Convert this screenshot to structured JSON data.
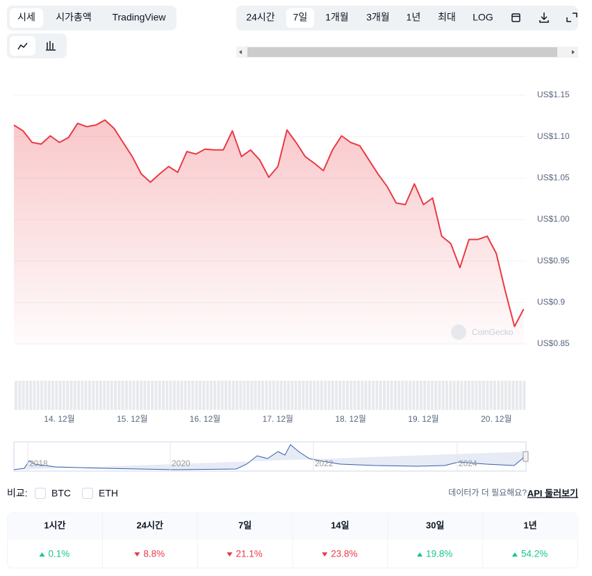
{
  "tabs": [
    "시세",
    "시가총액",
    "TradingView"
  ],
  "active_tab": 0,
  "ranges": [
    "24시간",
    "7일",
    "1개월",
    "3개월",
    "1년",
    "최대",
    "LOG"
  ],
  "active_range": 1,
  "chart_data": {
    "type": "line",
    "categories": [
      null,
      null,
      null,
      null,
      null,
      "14. 12월",
      null,
      null,
      null,
      null,
      null,
      null,
      null,
      "15. 12월",
      null,
      null,
      null,
      null,
      null,
      null,
      null,
      "16. 12월",
      null,
      null,
      null,
      null,
      null,
      null,
      null,
      "17. 12월",
      null,
      null,
      null,
      null,
      null,
      null,
      null,
      "18. 12월",
      null,
      null,
      null,
      null,
      null,
      null,
      null,
      "19. 12월",
      null,
      null,
      null,
      null,
      null,
      null,
      null,
      "20. 12월",
      null,
      null,
      null
    ],
    "values": [
      1.114,
      1.107,
      1.093,
      1.091,
      1.101,
      1.093,
      1.099,
      1.116,
      1.112,
      1.114,
      1.12,
      1.11,
      1.093,
      1.076,
      1.055,
      1.045,
      1.055,
      1.064,
      1.057,
      1.082,
      1.079,
      1.085,
      1.084,
      1.084,
      1.107,
      1.076,
      1.084,
      1.072,
      1.051,
      1.064,
      1.108,
      1.093,
      1.076,
      1.068,
      1.059,
      1.084,
      1.101,
      1.093,
      1.089,
      1.072,
      1.055,
      1.04,
      1.02,
      1.018,
      1.043,
      1.018,
      1.026,
      0.98,
      0.971,
      0.942,
      0.976,
      0.976,
      0.98,
      0.959,
      0.913,
      0.871,
      0.892
    ],
    "color": "#ea3943",
    "ylim": [
      0.85,
      1.15
    ],
    "yticks": [
      {
        "value": 0.85,
        "label": "US$0.85"
      },
      {
        "value": 0.9,
        "label": "US$0.9"
      },
      {
        "value": 0.95,
        "label": "US$0.95"
      },
      {
        "value": 1.0,
        "label": "US$1.00"
      },
      {
        "value": 1.05,
        "label": "US$1.05"
      },
      {
        "value": 1.1,
        "label": "US$1.10"
      },
      {
        "value": 1.15,
        "label": "US$1.15"
      }
    ],
    "grid": true,
    "watermark": "CoinGecko"
  },
  "navigator": {
    "labels": [
      "2018",
      "2020",
      "2022",
      "2024"
    ]
  },
  "compare": {
    "label": "비교:",
    "options": [
      "BTC",
      "ETH"
    ]
  },
  "api": {
    "prompt": "데이터가 더 필요해요?",
    "link": "API 둘러보기"
  },
  "changes": [
    {
      "period": "1시간",
      "value": "0.1%",
      "trend": "up"
    },
    {
      "period": "24시간",
      "value": "8.8%",
      "trend": "down"
    },
    {
      "period": "7일",
      "value": "21.1%",
      "trend": "down"
    },
    {
      "period": "14일",
      "value": "23.8%",
      "trend": "down"
    },
    {
      "period": "30일",
      "value": "19.8%",
      "trend": "up"
    },
    {
      "period": "1년",
      "value": "54.2%",
      "trend": "up"
    }
  ]
}
